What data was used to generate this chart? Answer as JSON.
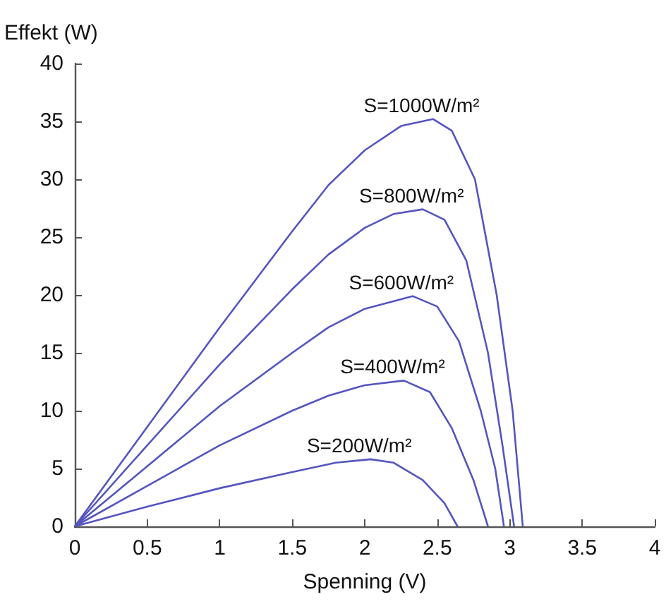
{
  "chart_data": {
    "type": "line",
    "xlabel": "Spenning (V)",
    "ylabel": "Effekt (W)",
    "xlim": [
      0,
      4
    ],
    "xticks": [
      0,
      0.5,
      1,
      1.5,
      2,
      2.5,
      3,
      3.5,
      4
    ],
    "ylim": [
      0,
      40
    ],
    "yticks": [
      0,
      5,
      10,
      15,
      20,
      25,
      30,
      35,
      40
    ],
    "grid": false,
    "legend": false,
    "marker": "none",
    "line_style": "solid",
    "series": [
      {
        "name": "S=1000W/m²",
        "color": "#5555c0",
        "x": [
          0,
          0.5,
          1,
          1.5,
          1.75,
          2,
          2.25,
          2.47,
          2.6,
          2.76,
          2.91,
          3.02,
          3.09
        ],
        "values": [
          0,
          8.6,
          17.2,
          25.5,
          29.5,
          32.5,
          34.6,
          35.2,
          34.2,
          30,
          20,
          10,
          0
        ]
      },
      {
        "name": "S=800W/m²",
        "color": "#5555c0",
        "x": [
          0,
          0.5,
          1,
          1.5,
          1.75,
          2,
          2.2,
          2.4,
          2.55,
          2.7,
          2.85,
          2.95,
          3.03
        ],
        "values": [
          0,
          7,
          14,
          20.5,
          23.5,
          25.8,
          27,
          27.4,
          26.5,
          23,
          15,
          7,
          0
        ]
      },
      {
        "name": "S=600W/m²",
        "color": "#5555c0",
        "x": [
          0,
          0.5,
          1,
          1.5,
          1.75,
          2,
          2.33,
          2.5,
          2.65,
          2.8,
          2.9,
          2.96
        ],
        "values": [
          0,
          5.2,
          10.4,
          15,
          17.2,
          18.8,
          19.9,
          19,
          16,
          10,
          5,
          0
        ]
      },
      {
        "name": "S=400W/m²",
        "color": "#5555c0",
        "x": [
          0,
          0.5,
          1,
          1.5,
          1.75,
          2,
          2.27,
          2.45,
          2.6,
          2.75,
          2.85
        ],
        "values": [
          0,
          3.5,
          7,
          10,
          11.3,
          12.2,
          12.6,
          11.6,
          8.5,
          4,
          0
        ]
      },
      {
        "name": "S=200W/m²",
        "color": "#5555c0",
        "x": [
          0,
          0.5,
          1,
          1.5,
          1.8,
          2.04,
          2.2,
          2.4,
          2.55,
          2.64
        ],
        "values": [
          0,
          1.7,
          3.3,
          4.7,
          5.5,
          5.8,
          5.5,
          4,
          2,
          0
        ]
      }
    ]
  }
}
